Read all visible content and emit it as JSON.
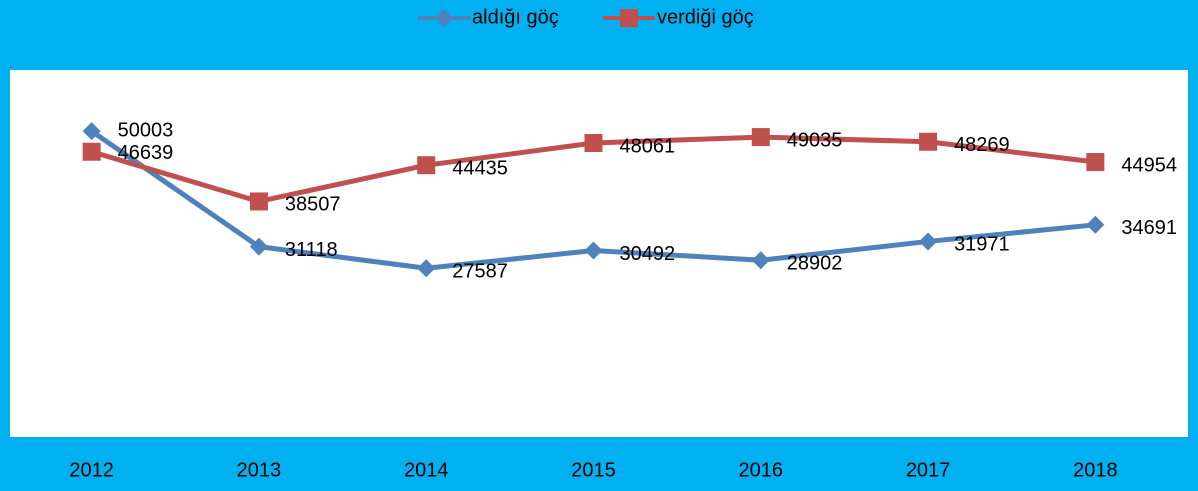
{
  "chart_data": {
    "type": "line",
    "categories": [
      "2012",
      "2013",
      "2014",
      "2015",
      "2016",
      "2017",
      "2018"
    ],
    "series": [
      {
        "name": "aldığı göç",
        "color": "#4f81bd",
        "marker": "diamond",
        "values": [
          50003,
          31118,
          27587,
          30492,
          28902,
          31971,
          34691
        ]
      },
      {
        "name": "verdiği göç",
        "color": "#c0504d",
        "marker": "square",
        "values": [
          46639,
          38507,
          44435,
          48061,
          49035,
          48269,
          44954
        ]
      }
    ],
    "ylim": [
      0,
      60000
    ],
    "legend": "top",
    "data_labels": true
  }
}
